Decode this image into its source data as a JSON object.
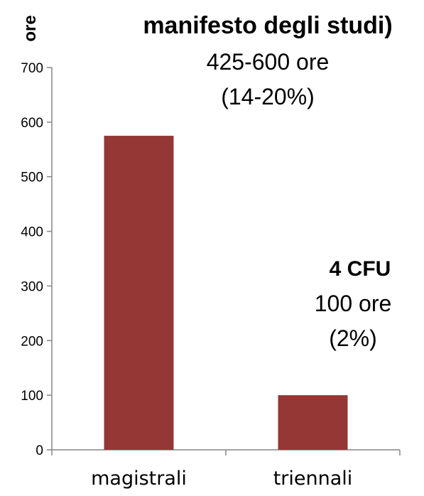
{
  "chart_data": {
    "type": "bar",
    "categories": [
      "magistrali",
      "triennali"
    ],
    "values": [
      575,
      100
    ],
    "ylabel": "ore",
    "ylim": [
      0,
      700
    ],
    "yticks": [
      0,
      100,
      200,
      300,
      400,
      500,
      600,
      700
    ],
    "grid": false,
    "bar_color": "#953735",
    "annotations": {
      "magistrali": {
        "title": "manifesto degli studi)",
        "line1": "425-600 ore",
        "line2": "(14-20%)"
      },
      "triennali": {
        "title": "4 CFU",
        "line1": "100 ore",
        "line2": "(2%)"
      }
    }
  }
}
